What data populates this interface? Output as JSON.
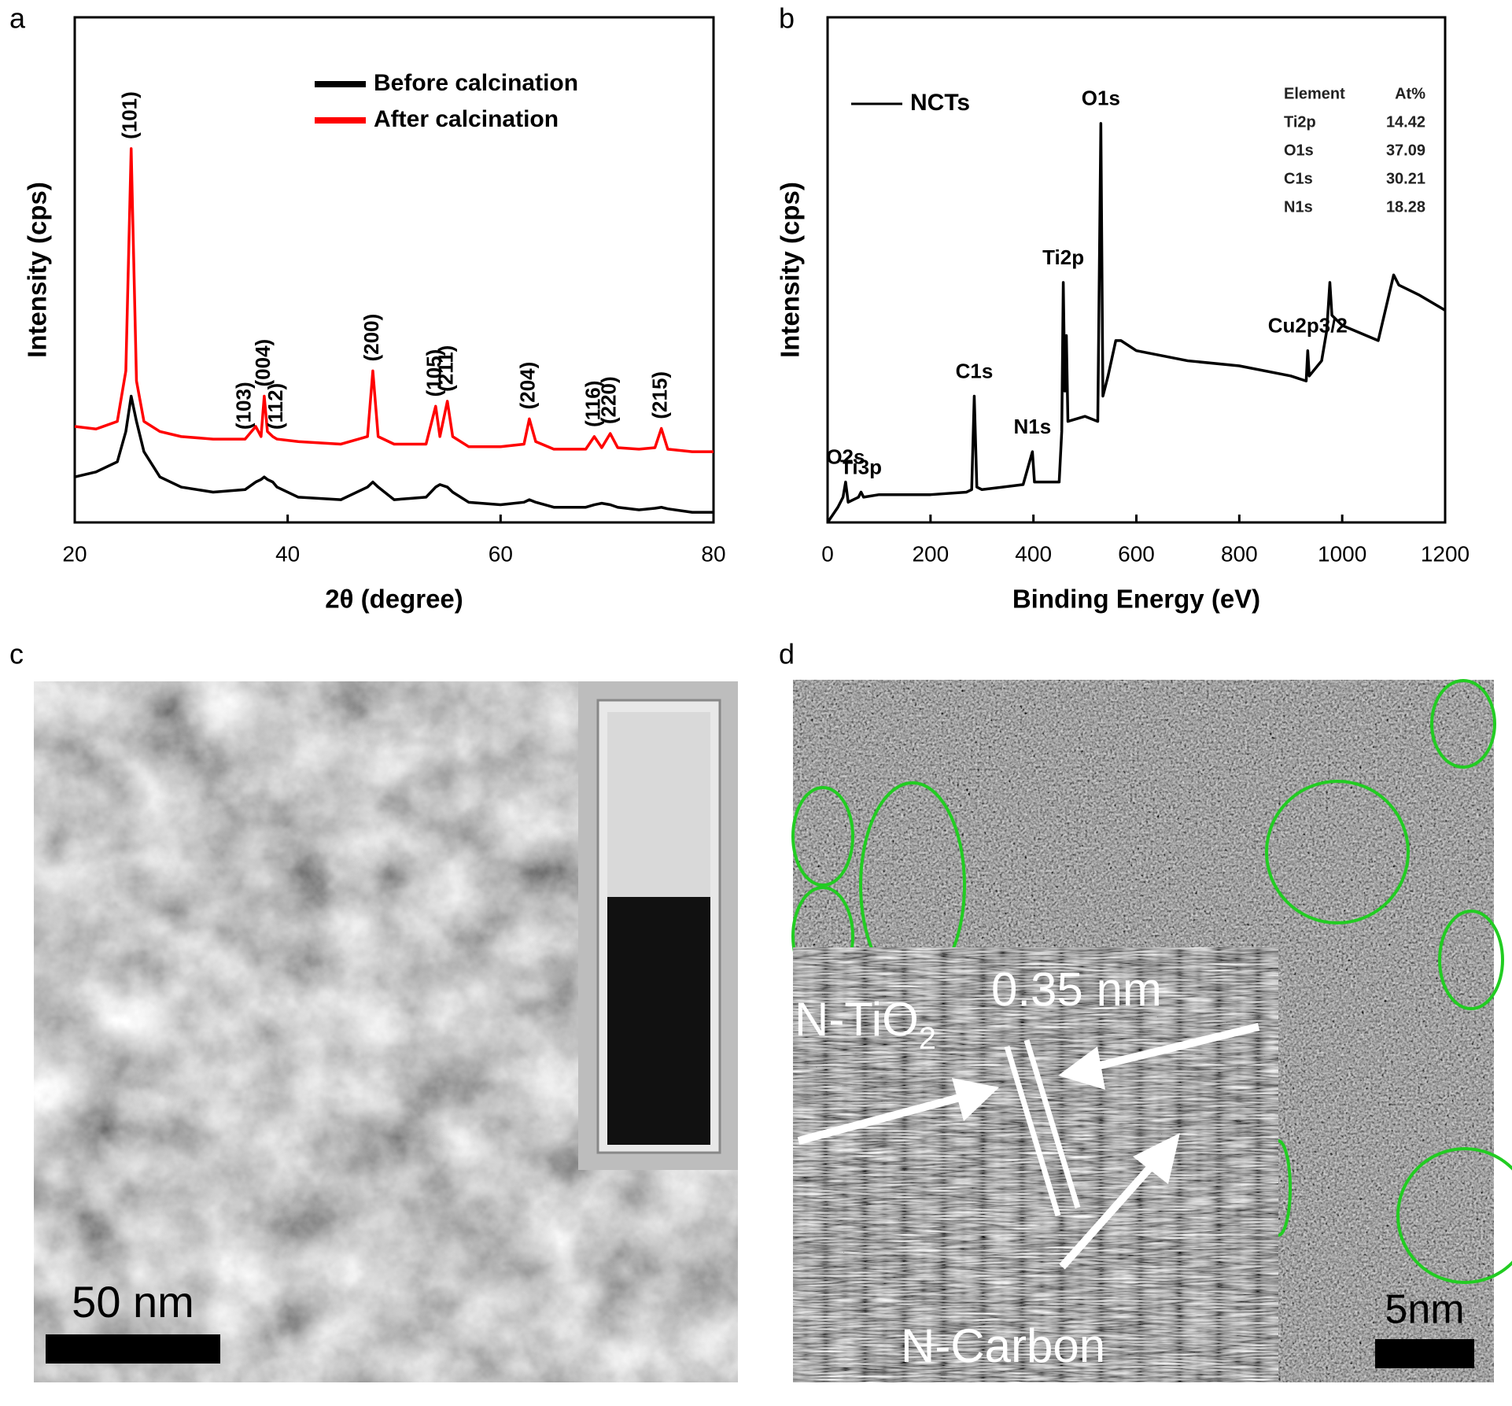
{
  "panel_labels": [
    "a",
    "b",
    "c",
    "d"
  ],
  "chart_data": [
    {
      "type": "line",
      "xlabel": "2θ (degree)",
      "ylabel": "Intensity (cps)",
      "xlim": [
        20,
        80
      ],
      "xticks": [
        20,
        40,
        60,
        80
      ],
      "ylim": [
        0,
        100
      ],
      "x": [
        20,
        22,
        24,
        24.8,
        25.3,
        25.8,
        26.5,
        28,
        30,
        33,
        36,
        37,
        37.5,
        37.8,
        38.1,
        38.6,
        39,
        41,
        45,
        47.5,
        48,
        48.5,
        50,
        53,
        53.9,
        54.3,
        55,
        55.5,
        57,
        60,
        62.2,
        62.7,
        63.3,
        65,
        68,
        68.8,
        69.5,
        70.3,
        71,
        73,
        74.5,
        75.1,
        75.7,
        78,
        80
      ],
      "series": [
        {
          "name": "Before calcination",
          "color": "#000000",
          "values": [
            9,
            10,
            12,
            18,
            25,
            20,
            14,
            9,
            7,
            6,
            6.5,
            8,
            8.5,
            9,
            8.5,
            8,
            7,
            5,
            4.5,
            7,
            8,
            7,
            4.5,
            5,
            7,
            7.5,
            7,
            6,
            4,
            3.5,
            4,
            4.5,
            4,
            3,
            3,
            3.5,
            3.8,
            3.5,
            3,
            2.5,
            2.8,
            3,
            2.7,
            2,
            2
          ]
        },
        {
          "name": "After calcination",
          "color": "#ff0000",
          "values": [
            19,
            18.5,
            20,
            30,
            74,
            28,
            20,
            18,
            17,
            16.5,
            16.5,
            19,
            17,
            25,
            18,
            17,
            16.5,
            16,
            15.5,
            17,
            30,
            17,
            15.5,
            15.5,
            23,
            17,
            24,
            17,
            15,
            15,
            15.5,
            20.5,
            16,
            14.5,
            14.5,
            17,
            14.8,
            17.6,
            14.8,
            14.5,
            14.8,
            18.6,
            14.5,
            14,
            14
          ]
        }
      ],
      "annotations": [
        {
          "text": "(101)",
          "x": 25.3
        },
        {
          "text": "(103)",
          "x": 36
        },
        {
          "text": "(004)",
          "x": 37.8
        },
        {
          "text": "(112)",
          "x": 39
        },
        {
          "text": "(200)",
          "x": 48
        },
        {
          "text": "(105)",
          "x": 53.9
        },
        {
          "text": "(211)",
          "x": 55
        },
        {
          "text": "(204)",
          "x": 62.7
        },
        {
          "text": "(116)",
          "x": 68.8
        },
        {
          "text": "(220)",
          "x": 70.3
        },
        {
          "text": "(215)",
          "x": 75.1
        }
      ]
    },
    {
      "type": "line",
      "xlabel": "Binding Energy (eV)",
      "ylabel": "Intensity (cps)",
      "xlim": [
        0,
        1200
      ],
      "xticks": [
        0,
        200,
        400,
        600,
        800,
        1000,
        1200
      ],
      "ylim": [
        0,
        100
      ],
      "x": [
        0,
        20,
        30,
        35,
        40,
        60,
        65,
        70,
        100,
        200,
        270,
        280,
        285,
        290,
        300,
        380,
        398,
        402,
        450,
        455,
        458,
        461,
        464,
        467,
        500,
        525,
        531,
        535,
        545,
        560,
        570,
        600,
        700,
        800,
        900,
        930,
        933,
        936,
        960,
        970,
        976,
        980,
        1000,
        1070,
        1100,
        1110,
        1150,
        1200
      ],
      "series": [
        {
          "name": "NCTs",
          "color": "#000000",
          "values": [
            0,
            3,
            5,
            8,
            4,
            5,
            6,
            5,
            5.5,
            5.5,
            6,
            6.5,
            25,
            7,
            6.5,
            7.5,
            14,
            8,
            8,
            18,
            47.5,
            26,
            37,
            20,
            21,
            20,
            79,
            25,
            29,
            36,
            36,
            34,
            32,
            31,
            29,
            28,
            34,
            29,
            32,
            38,
            47.5,
            41,
            39,
            36,
            49,
            47,
            45,
            42
          ]
        }
      ],
      "annotations": [
        {
          "text": "O2s",
          "x": 35
        },
        {
          "text": "Ti3p",
          "x": 65
        },
        {
          "text": "C1s",
          "x": 285
        },
        {
          "text": "N1s",
          "x": 398
        },
        {
          "text": "Ti2p",
          "x": 458
        },
        {
          "text": "O1s",
          "x": 531
        },
        {
          "text": "Cu2p3/2",
          "x": 933
        }
      ],
      "table": {
        "header": [
          "Element",
          "At%"
        ],
        "rows": [
          [
            "Ti2p",
            "14.42"
          ],
          [
            "O1s",
            "37.09"
          ],
          [
            "C1s",
            "30.21"
          ],
          [
            "N1s",
            "18.28"
          ]
        ]
      }
    }
  ],
  "images": {
    "c": {
      "scale_bar": "50 nm"
    },
    "d": {
      "scale_bar": "5nm",
      "label_top": {
        "text": "N-TiO",
        "subscript": "2"
      },
      "spacing": "0.35 nm",
      "label_bottom": "N-Carbon"
    }
  }
}
